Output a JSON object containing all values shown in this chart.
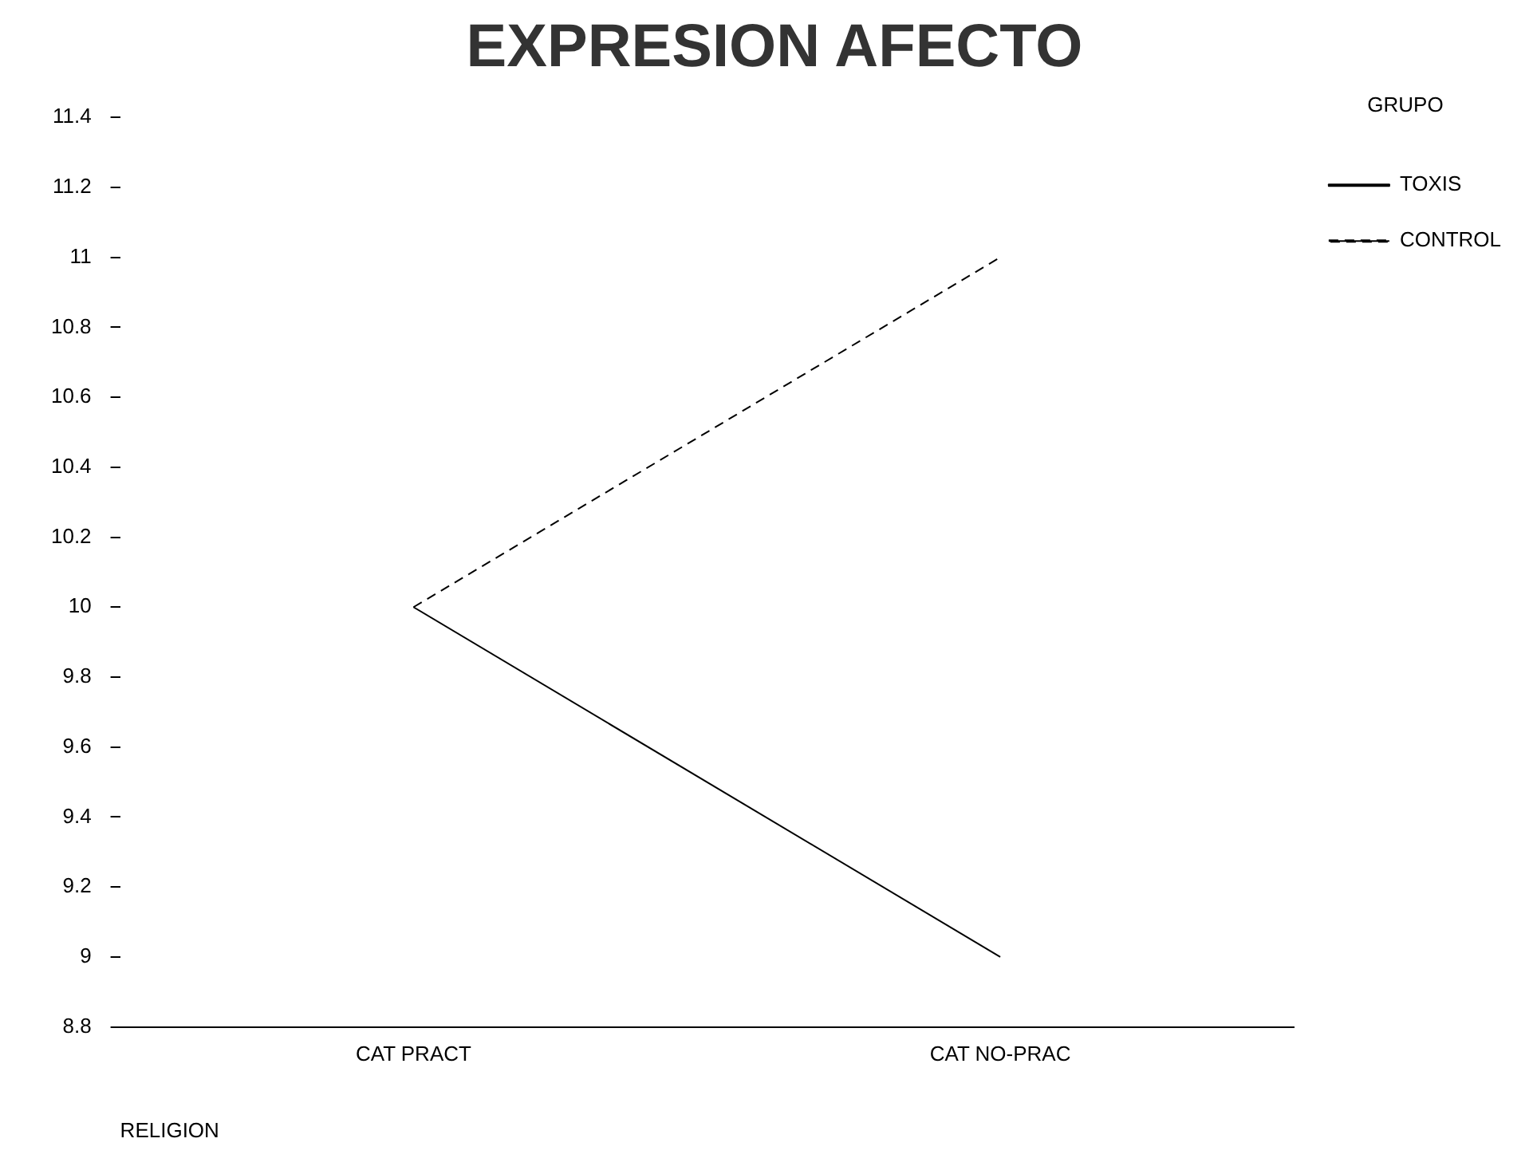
{
  "chart_data": {
    "type": "line",
    "title": "EXPRESION AFECTO",
    "xlabel": "RELIGION",
    "legend_title": "GRUPO",
    "categories": [
      "CAT PRACT",
      "CAT NO-PRAC"
    ],
    "series": [
      {
        "name": "TOXIS",
        "color": "#000000",
        "values": [
          10,
          9
        ],
        "line_style": "solid"
      },
      {
        "name": "CONTROL",
        "color": "#000000",
        "values": [
          10,
          11
        ],
        "line_style": "dashed"
      }
    ],
    "ylim": [
      8.8,
      11.4
    ],
    "yticks": [
      8.8,
      9,
      9.2,
      9.4,
      9.6,
      9.8,
      10,
      10.2,
      10.4,
      10.6,
      10.8,
      11,
      11.2,
      11.4
    ],
    "grid": false,
    "legend": "right",
    "marker": "none"
  }
}
